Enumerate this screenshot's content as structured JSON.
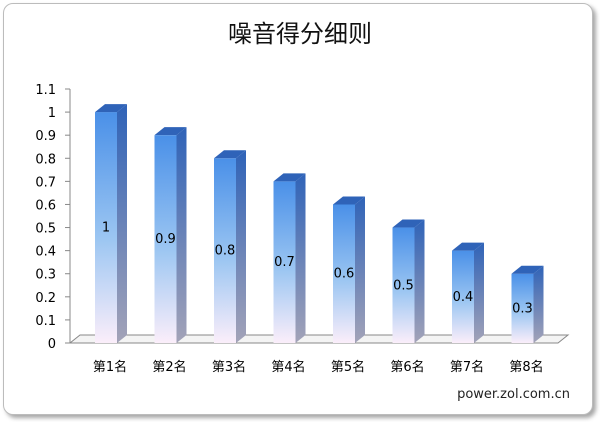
{
  "chart_data": {
    "type": "bar",
    "title": "噪音得分细则",
    "categories": [
      "第1名",
      "第2名",
      "第3名",
      "第4名",
      "第5名",
      "第6名",
      "第7名",
      "第8名"
    ],
    "values": [
      1,
      0.9,
      0.8,
      0.7,
      0.6,
      0.5,
      0.4,
      0.3
    ],
    "data_labels": [
      "1",
      "0.9",
      "0.8",
      "0.7",
      "0.6",
      "0.5",
      "0.4",
      "0.3"
    ],
    "ylim": [
      0,
      1.1
    ],
    "yticks": [
      0,
      0.1,
      0.2,
      0.3,
      0.4,
      0.5,
      0.6,
      0.7,
      0.8,
      0.9,
      1,
      1.1
    ],
    "ytick_labels": [
      "0",
      "0.1",
      "0.2",
      "0.3",
      "0.4",
      "0.5",
      "0.6",
      "0.7",
      "0.8",
      "0.9",
      "1",
      "1.1"
    ],
    "grid": false,
    "legend": "none",
    "three_d": true,
    "colors": {
      "bar_top": "#4a90e8",
      "bar_bottom": "#fbeefa",
      "bar_side": "#2f63b8",
      "bar_cap": "#5a9ef0",
      "axis": "#888888"
    }
  },
  "source": "power.zol.com.cn"
}
